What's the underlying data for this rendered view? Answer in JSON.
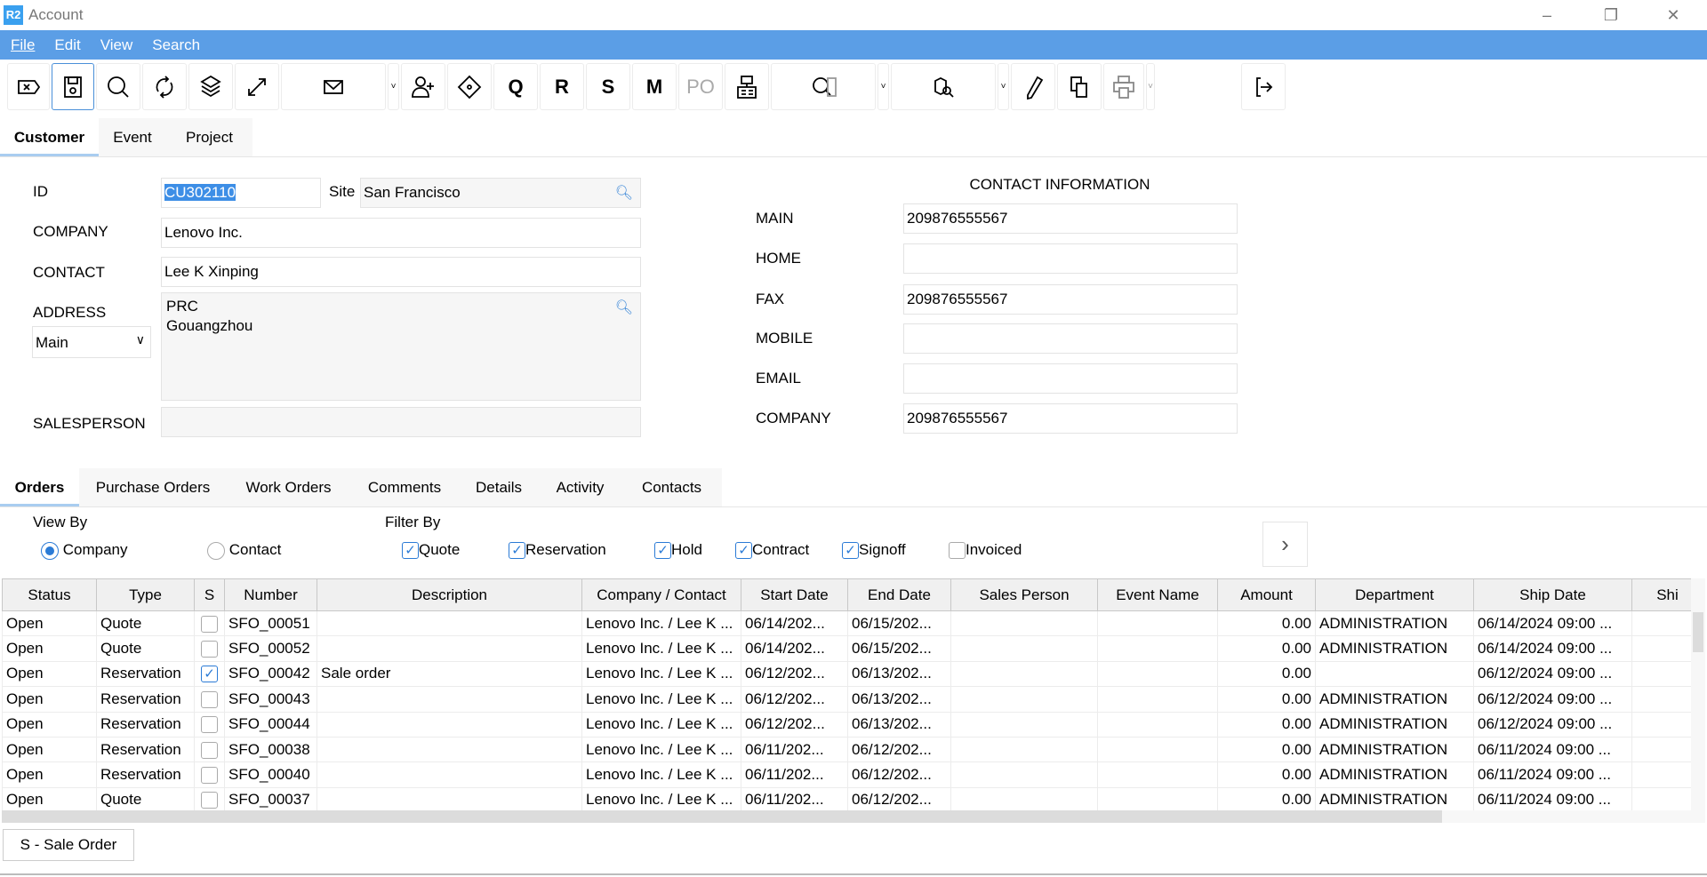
{
  "window": {
    "logo": "R2",
    "title": "Account",
    "minimize": "–",
    "restore": "❐",
    "close": "✕"
  },
  "menu": [
    "File",
    "Edit",
    "View",
    "Search"
  ],
  "toolbar": {
    "q": "Q",
    "r": "R",
    "s": "S",
    "m": "M",
    "po": "PO"
  },
  "top_tabs": [
    "Customer",
    "Event",
    "Project"
  ],
  "form": {
    "id_label": "ID",
    "id_value": "CU302110",
    "site_label": "Site",
    "site_value": "San Francisco",
    "company_label": "COMPANY",
    "company_value": "Lenovo Inc.",
    "contact_label": "CONTACT",
    "contact_value": "Lee K Xinping",
    "address_label": "ADDRESS",
    "address_type": "Main",
    "address_lines": [
      "PRC",
      "Gouangzhou"
    ],
    "salesperson_label": "SALESPERSON",
    "salesperson_value": ""
  },
  "contact_info": {
    "title": "CONTACT INFORMATION",
    "rows": [
      {
        "label": "MAIN",
        "value": "209876555567"
      },
      {
        "label": "HOME",
        "value": ""
      },
      {
        "label": "FAX",
        "value": "209876555567"
      },
      {
        "label": "MOBILE",
        "value": ""
      },
      {
        "label": "EMAIL",
        "value": ""
      },
      {
        "label": "COMPANY",
        "value": "209876555567"
      }
    ]
  },
  "bottom_tabs": [
    "Orders",
    "Purchase Orders",
    "Work Orders",
    "Comments",
    "Details",
    "Activity",
    "Contacts"
  ],
  "view_by": {
    "label": "View By",
    "options": [
      {
        "label": "Company",
        "selected": true
      },
      {
        "label": "Contact",
        "selected": false
      }
    ]
  },
  "filter_by": {
    "label": "Filter By",
    "options": [
      {
        "label": "Quote",
        "checked": true
      },
      {
        "label": "Reservation",
        "checked": true
      },
      {
        "label": "Hold",
        "checked": true
      },
      {
        "label": "Contract",
        "checked": true
      },
      {
        "label": "Signoff",
        "checked": true
      },
      {
        "label": "Invoiced",
        "checked": false
      }
    ]
  },
  "orders": {
    "columns": [
      "Status",
      "Type",
      "S",
      "Number",
      "Description",
      "Company / Contact",
      "Start Date",
      "End Date",
      "Sales Person",
      "Event Name",
      "Amount",
      "Department",
      "Ship Date",
      "Shi"
    ],
    "rows": [
      [
        "Open",
        "Quote",
        false,
        "SFO_00051",
        "",
        "Lenovo Inc. / Lee K ...",
        "06/14/202...",
        "06/15/202...",
        "",
        "",
        "0.00",
        "ADMINISTRATION",
        "06/14/2024 09:00 ...",
        ""
      ],
      [
        "Open",
        "Quote",
        false,
        "SFO_00052",
        "",
        "Lenovo Inc. / Lee K ...",
        "06/14/202...",
        "06/15/202...",
        "",
        "",
        "0.00",
        "ADMINISTRATION",
        "06/14/2024 09:00 ...",
        ""
      ],
      [
        "Open",
        "Reservation",
        true,
        "SFO_00042",
        "Sale order",
        "Lenovo Inc. / Lee K ...",
        "06/12/202...",
        "06/13/202...",
        "",
        "",
        "0.00",
        "",
        "06/12/2024 09:00 ...",
        ""
      ],
      [
        "Open",
        "Reservation",
        false,
        "SFO_00043",
        "",
        "Lenovo Inc. / Lee K ...",
        "06/12/202...",
        "06/13/202...",
        "",
        "",
        "0.00",
        "ADMINISTRATION",
        "06/12/2024 09:00 ...",
        ""
      ],
      [
        "Open",
        "Reservation",
        false,
        "SFO_00044",
        "",
        "Lenovo Inc. / Lee K ...",
        "06/12/202...",
        "06/13/202...",
        "",
        "",
        "0.00",
        "ADMINISTRATION",
        "06/12/2024 09:00 ...",
        ""
      ],
      [
        "Open",
        "Reservation",
        false,
        "SFO_00038",
        "",
        "Lenovo Inc. / Lee K ...",
        "06/11/202...",
        "06/12/202...",
        "",
        "",
        "0.00",
        "ADMINISTRATION",
        "06/11/2024 09:00 ...",
        ""
      ],
      [
        "Open",
        "Reservation",
        false,
        "SFO_00040",
        "",
        "Lenovo Inc. / Lee K ...",
        "06/11/202...",
        "06/12/202...",
        "",
        "",
        "0.00",
        "ADMINISTRATION",
        "06/11/2024 09:00 ...",
        ""
      ],
      [
        "Open",
        "Quote",
        false,
        "SFO_00037",
        "",
        "Lenovo Inc. / Lee K ...",
        "06/11/202...",
        "06/12/202...",
        "",
        "",
        "0.00",
        "ADMINISTRATION",
        "06/11/2024 09:00 ...",
        ""
      ]
    ]
  },
  "legend_button": "S - Sale Order",
  "colors": {
    "menubar": "#5b9ee6",
    "accent": "#2b7bd6"
  }
}
